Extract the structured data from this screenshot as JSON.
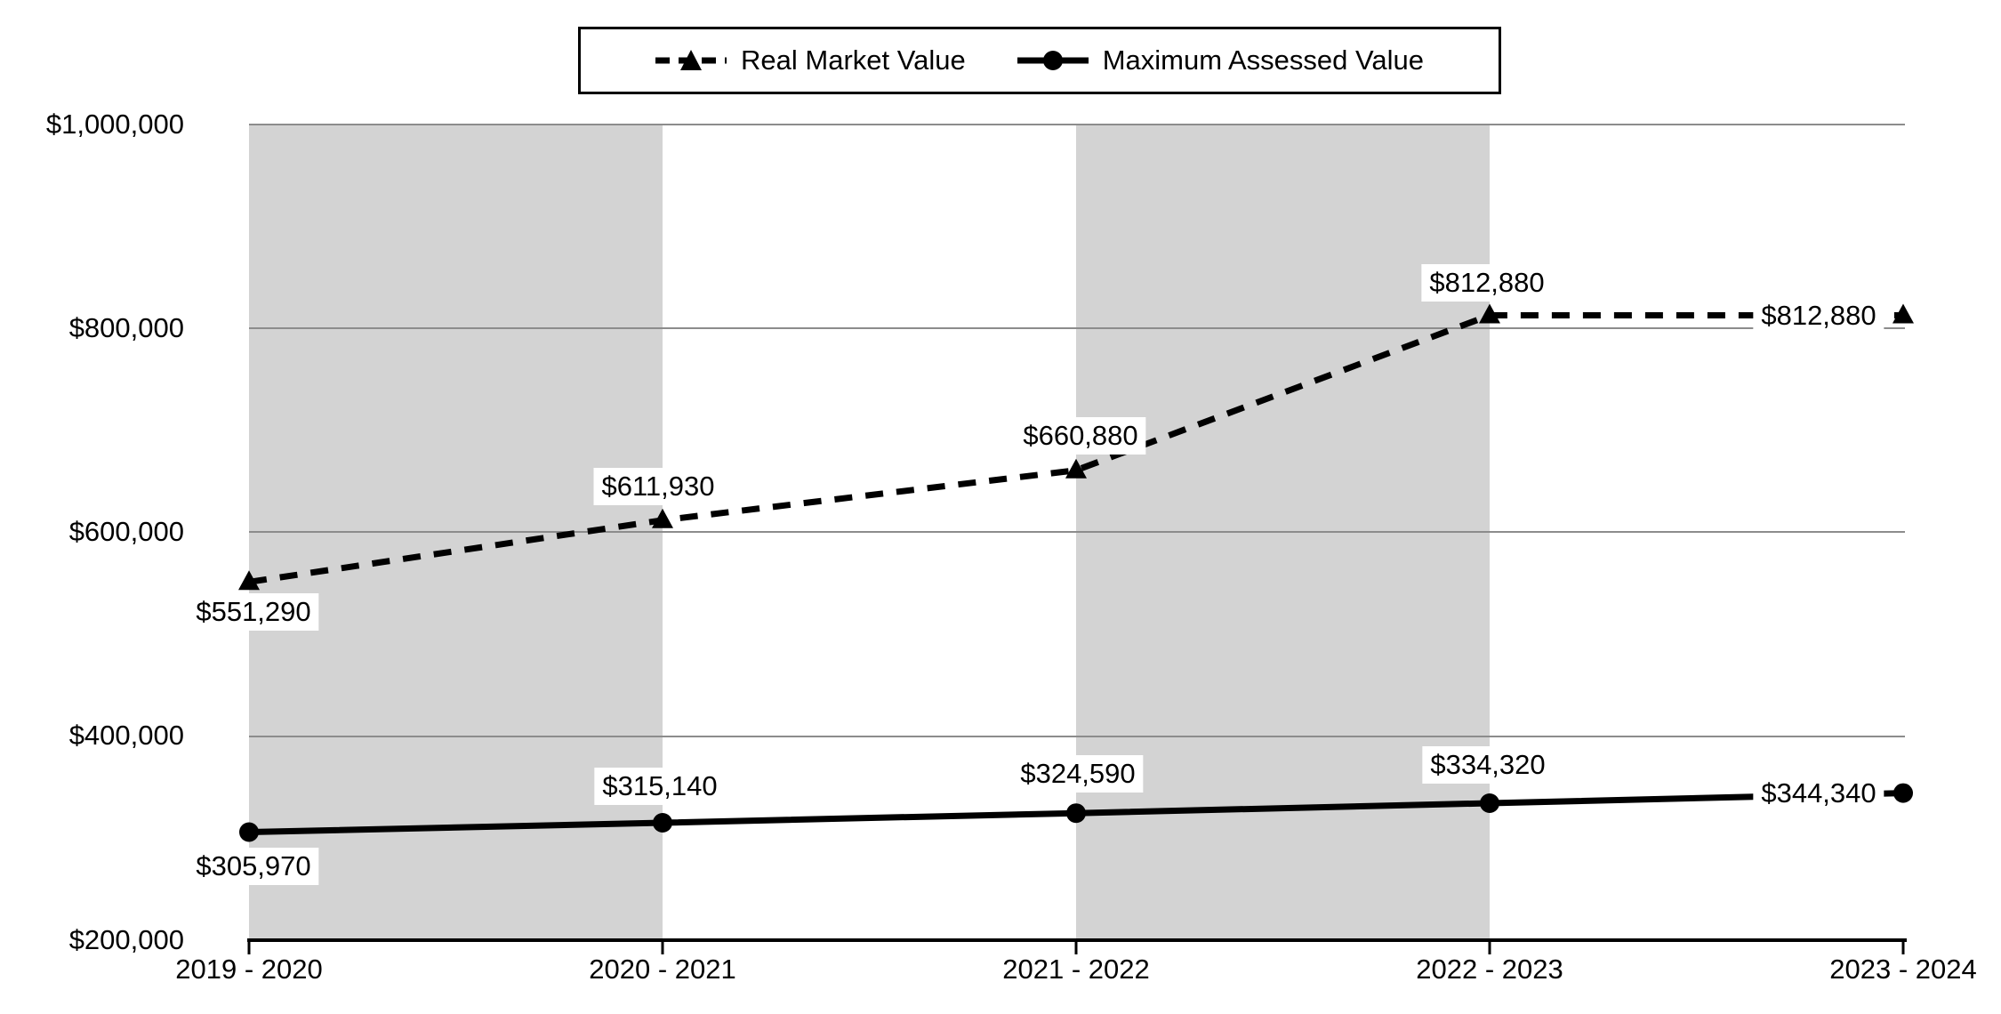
{
  "chart_data": {
    "type": "line",
    "title": "",
    "xlabel": "",
    "ylabel": "",
    "categories": [
      "2019 - 2020",
      "2020 - 2021",
      "2021 - 2022",
      "2022 - 2023",
      "2023 - 2024"
    ],
    "series": [
      {
        "name": "Real Market Value",
        "line_style": "dashed",
        "marker": "triangle",
        "values": [
          551290,
          611930,
          660880,
          812880,
          812880
        ],
        "labels": [
          "$551,290",
          "$611,930",
          "$660,880",
          "$812,880",
          "$812,880"
        ]
      },
      {
        "name": "Maximum Assessed Value",
        "line_style": "solid",
        "marker": "circle",
        "values": [
          305970,
          315140,
          324590,
          334320,
          344340
        ],
        "labels": [
          "$305,970",
          "$315,140",
          "$324,590",
          "$334,320",
          "$344,340"
        ]
      }
    ],
    "ylim": [
      200000,
      1000000
    ],
    "ytick_step": 200000,
    "yticks": [
      "$1,000,000",
      "$800,000",
      "$600,000",
      "$400,000",
      "$200,000"
    ],
    "grid": "horizontal",
    "legend_position": "top",
    "shaded_band_intervals": [
      [
        0,
        1
      ],
      [
        2,
        3
      ]
    ],
    "colors": {
      "line": "#000000",
      "plot_band": "#d3d3d3",
      "gridline": "#8c8c8c",
      "background": "#ffffff",
      "label_background": "#ffffff"
    }
  }
}
